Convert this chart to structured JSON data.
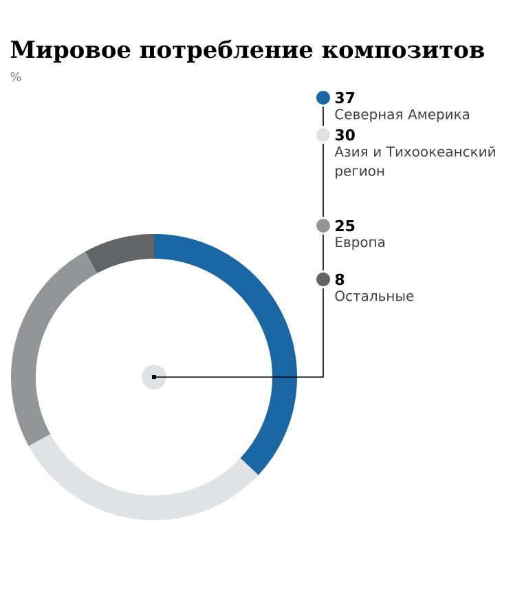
{
  "chart_data": {
    "type": "donut",
    "title": "Мировое потребление композитов",
    "subtitle": "%",
    "categories": [
      "Северная Америка",
      "Азия и Тихоокеанский регион",
      "Европа",
      "Остальные"
    ],
    "values": [
      37,
      30,
      25,
      8
    ],
    "colors": [
      "#1a67a3",
      "#e1e2e4",
      "#939598",
      "#636466"
    ],
    "data_labels": true,
    "legend": "right"
  }
}
